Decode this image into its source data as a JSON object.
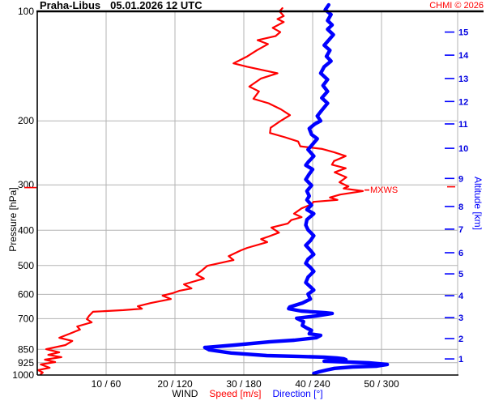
{
  "header": {
    "station": "Praha-Libus",
    "datetime": "05.01.2026 12 UTC",
    "copyright": "CHMI © 2026"
  },
  "axes": {
    "left": {
      "title": "Pressure [hPa]",
      "ticks": [
        100,
        200,
        300,
        400,
        500,
        600,
        700,
        850,
        925,
        1000
      ]
    },
    "right": {
      "title": "Altitude [km]",
      "ticks": [
        {
          "km": 1,
          "p": 903
        },
        {
          "km": 2,
          "p": 794
        },
        {
          "km": 3,
          "p": 695
        },
        {
          "km": 4,
          "p": 605
        },
        {
          "km": 5,
          "p": 527
        },
        {
          "km": 6,
          "p": 461
        },
        {
          "km": 7,
          "p": 397
        },
        {
          "km": 8,
          "p": 344
        },
        {
          "km": 9,
          "p": 288
        },
        {
          "km": 10,
          "p": 238
        },
        {
          "km": 11,
          "p": 204
        },
        {
          "km": 12,
          "p": 177
        },
        {
          "km": 13,
          "p": 153
        },
        {
          "km": 14,
          "p": 132
        },
        {
          "km": 15,
          "p": 114
        }
      ]
    },
    "bottom": {
      "caption_wind": "WIND",
      "caption_speed": "Speed [m/s]",
      "caption_direction": "Direction [°]",
      "ticks": [
        {
          "speed": 10,
          "label": "10 / 60"
        },
        {
          "speed": 20,
          "label": "20 / 120"
        },
        {
          "speed": 30,
          "label": "30 / 180"
        },
        {
          "speed": 40,
          "label": "40 / 240"
        },
        {
          "speed": 50,
          "label": "50 / 300"
        }
      ]
    }
  },
  "colors": {
    "speed": "#ff0000",
    "direction": "#0000ff",
    "grid": "#b3b3b3",
    "axis": "#000000",
    "altitude_text": "#0000e0"
  },
  "annotation": {
    "label": "MXWS",
    "pressure": 310,
    "speed": 47.3
  },
  "chart_data": {
    "type": "line",
    "title": "Praha-Libus 05.01.2026 12 UTC",
    "x_axis": {
      "speed_ticks": [
        10,
        20,
        30,
        40,
        50
      ],
      "direction_ticks": [
        60,
        120,
        180,
        240,
        300
      ],
      "speed_range": [
        0,
        61
      ],
      "direction_range": [
        0,
        366
      ]
    },
    "y_axis": {
      "scale": "log",
      "pressure_range": [
        100,
        1000
      ],
      "grid": true
    },
    "series": [
      {
        "name": "Speed [m/s]",
        "units": "m/s",
        "color": "#ff0000",
        "points": [
          [
            98,
            35.6
          ],
          [
            100,
            35.2
          ],
          [
            103,
            35.8
          ],
          [
            105,
            34.9
          ],
          [
            107,
            35.8
          ],
          [
            111,
            34.2
          ],
          [
            114,
            35.3
          ],
          [
            117,
            34.6
          ],
          [
            120,
            32.0
          ],
          [
            123,
            33.5
          ],
          [
            128,
            31.9
          ],
          [
            133,
            30.5
          ],
          [
            139,
            28.5
          ],
          [
            142,
            30.5
          ],
          [
            148,
            34.9
          ],
          [
            153,
            32.5
          ],
          [
            161,
            30.8
          ],
          [
            166,
            32.2
          ],
          [
            174,
            31.4
          ],
          [
            179,
            33.6
          ],
          [
            186,
            35.4
          ],
          [
            193,
            36.7
          ],
          [
            201,
            35.2
          ],
          [
            209,
            33.9
          ],
          [
            216,
            33.8
          ],
          [
            222,
            36.0
          ],
          [
            228,
            37.9
          ],
          [
            235,
            38.2
          ],
          [
            239,
            41.4
          ],
          [
            244,
            43.1
          ],
          [
            250,
            44.8
          ],
          [
            258,
            43.1
          ],
          [
            264,
            42.8
          ],
          [
            270,
            44.8
          ],
          [
            277,
            43.2
          ],
          [
            286,
            44.9
          ],
          [
            295,
            43.9
          ],
          [
            303,
            45.2
          ],
          [
            307,
            44.5
          ],
          [
            312,
            47.3
          ],
          [
            319,
            44.0
          ],
          [
            325,
            42.5
          ],
          [
            330,
            43.6
          ],
          [
            334,
            40.1
          ],
          [
            339,
            39.9
          ],
          [
            348,
            38.4
          ],
          [
            360,
            37.3
          ],
          [
            368,
            38.4
          ],
          [
            375,
            36.9
          ],
          [
            383,
            36.4
          ],
          [
            393,
            34.0
          ],
          [
            406,
            35.1
          ],
          [
            416,
            33.6
          ],
          [
            423,
            32.5
          ],
          [
            431,
            33.4
          ],
          [
            447,
            30.5
          ],
          [
            454,
            29.6
          ],
          [
            471,
            27.8
          ],
          [
            483,
            28.5
          ],
          [
            501,
            24.7
          ],
          [
            516,
            23.9
          ],
          [
            529,
            23.1
          ],
          [
            543,
            24.2
          ],
          [
            563,
            21.3
          ],
          [
            578,
            22.4
          ],
          [
            587,
            20.6
          ],
          [
            596,
            19.6
          ],
          [
            605,
            18.2
          ],
          [
            618,
            19.4
          ],
          [
            634,
            16.5
          ],
          [
            647,
            14.6
          ],
          [
            657,
            15.2
          ],
          [
            663,
            12.5
          ],
          [
            670,
            8.1
          ],
          [
            688,
            7.5
          ],
          [
            702,
            7.2
          ],
          [
            716,
            7.9
          ],
          [
            735,
            5.8
          ],
          [
            750,
            6.2
          ],
          [
            770,
            4.7
          ],
          [
            790,
            3.2
          ],
          [
            806,
            5.1
          ],
          [
            827,
            4.1
          ],
          [
            849,
            1.3
          ],
          [
            866,
            3.2
          ],
          [
            880,
            1.6
          ],
          [
            893,
            3.5
          ],
          [
            907,
            1.1
          ],
          [
            921,
            2.6
          ],
          [
            935,
            0.5
          ],
          [
            955,
            1.8
          ],
          [
            969,
            0.1
          ],
          [
            984,
            0.8
          ],
          [
            995,
            0.5
          ]
        ]
      },
      {
        "name": "Direction [°]",
        "units": "deg",
        "color": "#0000ff",
        "points": [
          [
            96,
            254
          ],
          [
            99,
            251
          ],
          [
            102,
            256
          ],
          [
            106,
            253
          ],
          [
            109,
            257
          ],
          [
            112,
            253
          ],
          [
            116,
            258
          ],
          [
            120,
            254
          ],
          [
            124,
            250
          ],
          [
            128,
            255
          ],
          [
            133,
            252
          ],
          [
            137,
            256
          ],
          [
            142,
            250
          ],
          [
            148,
            247
          ],
          [
            154,
            253
          ],
          [
            160,
            249
          ],
          [
            166,
            253
          ],
          [
            173,
            248
          ],
          [
            179,
            253
          ],
          [
            187,
            248
          ],
          [
            194,
            244
          ],
          [
            200,
            247
          ],
          [
            204,
            242
          ],
          [
            210,
            237
          ],
          [
            218,
            239
          ],
          [
            224,
            244
          ],
          [
            232,
            240
          ],
          [
            240,
            236
          ],
          [
            250,
            241
          ],
          [
            260,
            236
          ],
          [
            265,
            234
          ],
          [
            272,
            240
          ],
          [
            280,
            237
          ],
          [
            290,
            234
          ],
          [
            301,
            239
          ],
          [
            312,
            235
          ],
          [
            322,
            237
          ],
          [
            330,
            235
          ],
          [
            341,
            239
          ],
          [
            351,
            235
          ],
          [
            360,
            241
          ],
          [
            374,
            235
          ],
          [
            387,
            234
          ],
          [
            399,
            236
          ],
          [
            414,
            241
          ],
          [
            427,
            238
          ],
          [
            440,
            234
          ],
          [
            454,
            238
          ],
          [
            466,
            241
          ],
          [
            480,
            236
          ],
          [
            493,
            234
          ],
          [
            506,
            238
          ],
          [
            519,
            241
          ],
          [
            538,
            236
          ],
          [
            557,
            234
          ],
          [
            572,
            238
          ],
          [
            584,
            241
          ],
          [
            599,
            236
          ],
          [
            618,
            238
          ],
          [
            634,
            231
          ],
          [
            650,
            220
          ],
          [
            657,
            219
          ],
          [
            667,
            230
          ],
          [
            674,
            251
          ],
          [
            677,
            257
          ],
          [
            688,
            243
          ],
          [
            698,
            226
          ],
          [
            713,
            232
          ],
          [
            731,
            231
          ],
          [
            743,
            235
          ],
          [
            754,
            239
          ],
          [
            770,
            237
          ],
          [
            778,
            247
          ],
          [
            790,
            243
          ],
          [
            802,
            224
          ],
          [
            810,
            203
          ],
          [
            827,
            172
          ],
          [
            840,
            146
          ],
          [
            853,
            150
          ],
          [
            870,
            169
          ],
          [
            884,
            200
          ],
          [
            889,
            229
          ],
          [
            893,
            250
          ],
          [
            898,
            261
          ],
          [
            902,
            267
          ],
          [
            907,
            269
          ],
          [
            912,
            253
          ],
          [
            916,
            250
          ],
          [
            921,
            271
          ],
          [
            926,
            289
          ],
          [
            935,
            305
          ],
          [
            945,
            296
          ],
          [
            950,
            275
          ],
          [
            959,
            259
          ],
          [
            969,
            252
          ],
          [
            979,
            246
          ],
          [
            990,
            241
          ]
        ]
      }
    ]
  }
}
